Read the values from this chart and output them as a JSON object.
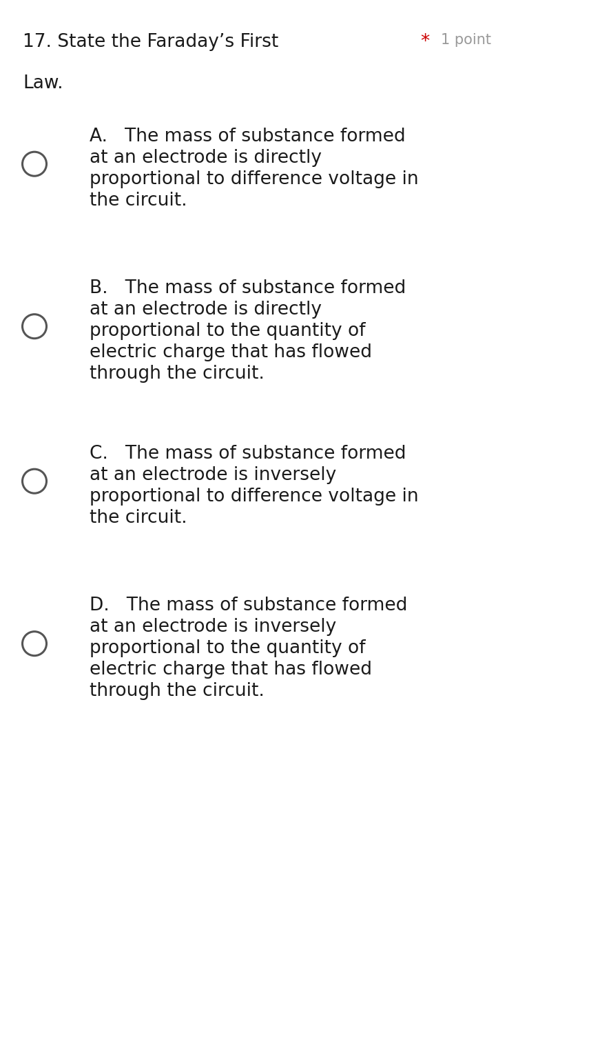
{
  "background_color": "#ffffff",
  "question_number": "17.",
  "question_text": "State the Faraday’s First",
  "question_text2": "Law.",
  "points_star": "*",
  "points_text": "1 point",
  "options": [
    {
      "label": "A.",
      "lines": [
        "A.   The mass of substance formed",
        "at an electrode is directly",
        "proportional to difference voltage in",
        "the circuit."
      ]
    },
    {
      "label": "B.",
      "lines": [
        "B.   The mass of substance formed",
        "at an electrode is directly",
        "proportional to the quantity of",
        "electric charge that has flowed",
        "through the circuit."
      ]
    },
    {
      "label": "C.",
      "lines": [
        "C.   The mass of substance formed",
        "at an electrode is inversely",
        "proportional to difference voltage in",
        "the circuit."
      ]
    },
    {
      "label": "D.",
      "lines": [
        "D.   The mass of substance formed",
        "at an electrode is inversely",
        "proportional to the quantity of",
        "electric charge that has flowed",
        "through the circuit."
      ]
    }
  ],
  "title_fontsize": 19,
  "points_fontsize": 15,
  "option_text_fontsize": 19,
  "circle_color": "#555555",
  "star_color": "#cc0000",
  "text_color": "#1a1a1a",
  "gray_color": "#999999"
}
